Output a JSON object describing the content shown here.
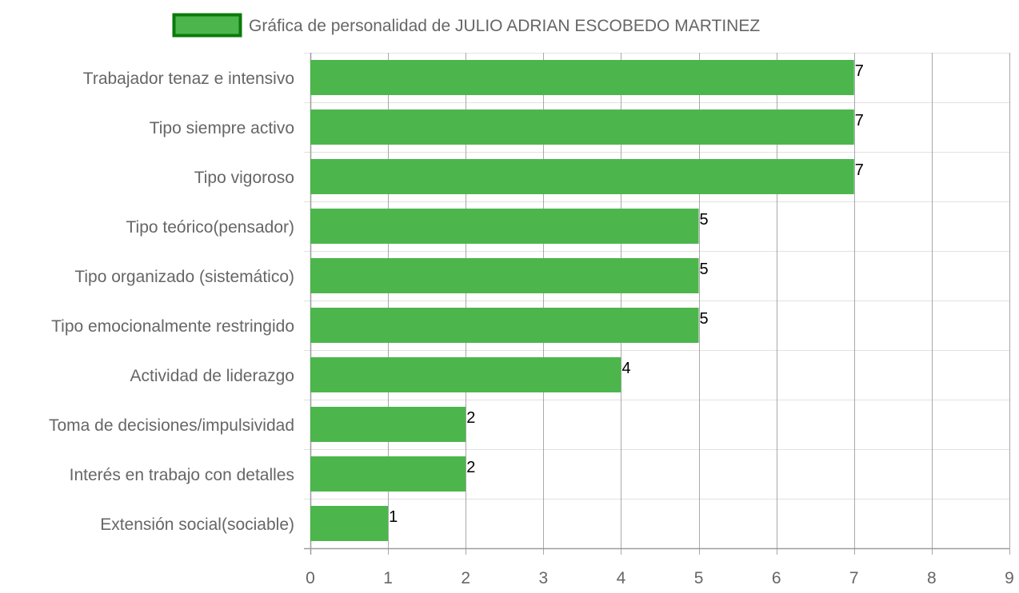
{
  "chart_data": {
    "type": "bar",
    "orientation": "horizontal",
    "categories": [
      "Trabajador tenaz e intensivo",
      "Tipo siempre activo",
      "Tipo vigoroso",
      "Tipo teórico(pensador)",
      "Tipo organizado (sistemático)",
      "Tipo emocionalmente restringido",
      "Actividad de liderazgo",
      "Toma de decisiones/impulsividad",
      "Interés en trabajo con detalles",
      "Extensión social(sociable)"
    ],
    "series": [
      {
        "name": "Gráfica de personalidad de JULIO ADRIAN ESCOBEDO MARTINEZ",
        "values": [
          7,
          7,
          7,
          5,
          5,
          5,
          4,
          2,
          2,
          1
        ],
        "color": "#4cb64c",
        "border_color": "#0a7a0a"
      }
    ],
    "x_ticks": [
      "0",
      "1",
      "2",
      "3",
      "4",
      "5",
      "6",
      "7",
      "8",
      "9"
    ],
    "xlim": [
      0,
      9
    ],
    "grid": true,
    "data_labels": true,
    "legend_position": "top"
  }
}
